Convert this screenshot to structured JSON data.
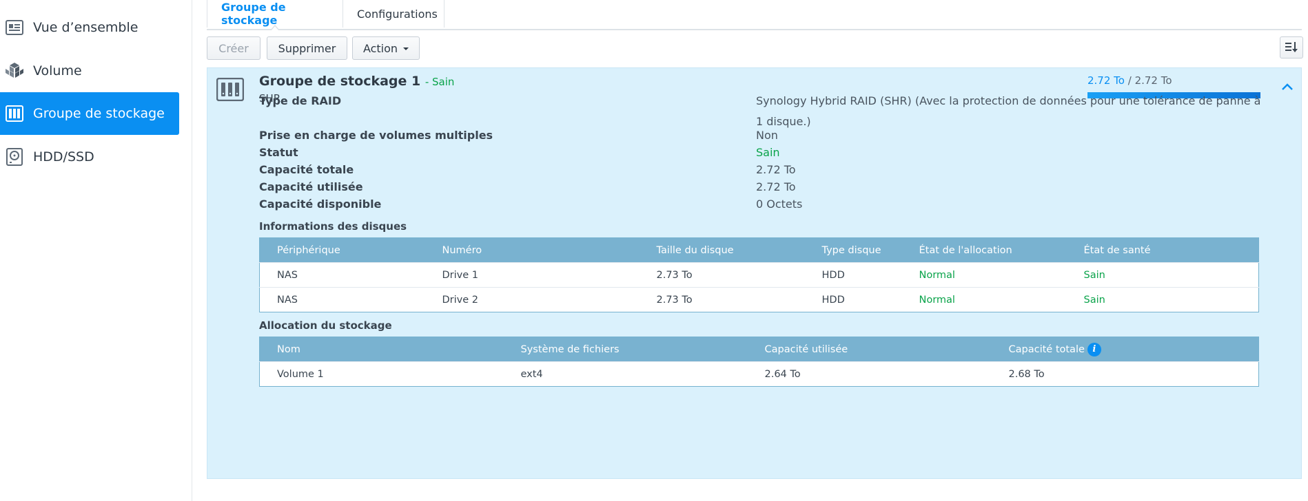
{
  "sidebar": {
    "items": [
      {
        "label": "Vue d’ensemble",
        "icon": "overview-icon"
      },
      {
        "label": "Volume",
        "icon": "volume-icon"
      },
      {
        "label": "Groupe de stockage",
        "icon": "storage-pool-icon",
        "active": true
      },
      {
        "label": "HDD/SSD",
        "icon": "hdd-icon"
      }
    ]
  },
  "tabs": [
    {
      "label": "Groupe de stockage",
      "active": true
    },
    {
      "label": "Configurations",
      "active": false
    }
  ],
  "toolbar": {
    "create_label": "Créer",
    "delete_label": "Supprimer",
    "action_label": "Action"
  },
  "pool": {
    "title": "Groupe de stockage 1",
    "status": "- Sain",
    "subtitle": "SHR",
    "usage_used": "2.72 To",
    "usage_sep": " / ",
    "usage_total": "2.72 To",
    "usage_fraction": 1.0,
    "properties": [
      {
        "label": "Type de RAID",
        "value": "Synology Hybrid RAID (SHR) (Avec la protection de données pour une tolérance de panne à 1 disque.)"
      },
      {
        "label": "Prise en charge de volumes multiples",
        "value": "Non"
      },
      {
        "label": "Statut",
        "value": "Sain"
      },
      {
        "label": "Capacité totale",
        "value": "2.72 To"
      },
      {
        "label": "Capacité utilisée",
        "value": "2.72 To"
      },
      {
        "label": "Capacité disponible",
        "value": "0 Octets"
      }
    ]
  },
  "disks": {
    "title": "Informations des disques",
    "headers": [
      "Périphérique",
      "Numéro",
      "Taille du disque",
      "Type disque",
      "État de l'allocation",
      "État de santé"
    ],
    "rows": [
      [
        "NAS",
        "Drive 1",
        "2.73 To",
        "HDD",
        "Normal",
        "Sain"
      ],
      [
        "NAS",
        "Drive 2",
        "2.73 To",
        "HDD",
        "Normal",
        "Sain"
      ]
    ]
  },
  "allocation": {
    "title": "Allocation du stockage",
    "headers": [
      "Nom",
      "Système de fichiers",
      "Capacité utilisée",
      "Capacité totale"
    ],
    "info_icon": "i",
    "rows": [
      [
        "Volume 1",
        "ext4",
        "2.64 To",
        "2.68 To"
      ]
    ]
  },
  "colors": {
    "accent": "#0a8ff2",
    "healthy": "#0aa34a",
    "panel_bg": "#daf1fc",
    "table_header": "#79b2d0"
  }
}
